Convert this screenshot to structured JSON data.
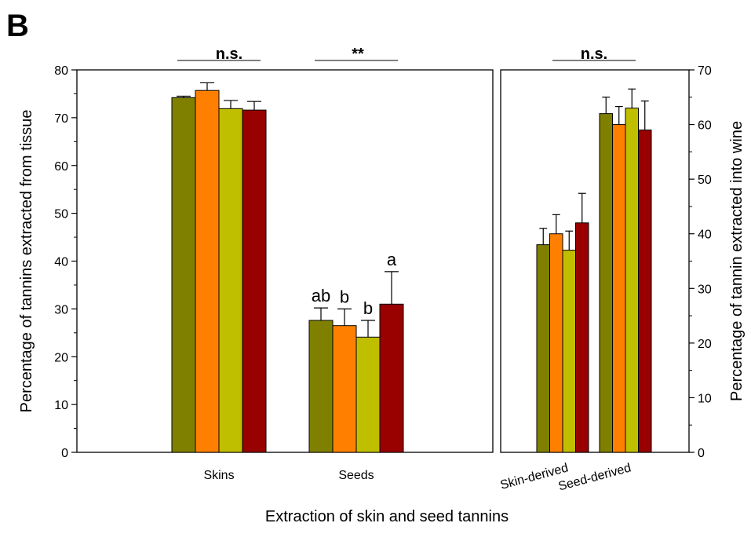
{
  "panel_label": "B",
  "x_label": "Extraction of skin and seed tannins",
  "chart_data": [
    {
      "type": "bar",
      "y_label": "Percentage of tannins extracted from tissue",
      "categories": [
        "Skins",
        "Seeds"
      ],
      "ylim": [
        0,
        80
      ],
      "yticks": [
        0,
        10,
        20,
        30,
        40,
        50,
        60,
        70,
        80
      ],
      "yminor": [
        5,
        15,
        25,
        35,
        45,
        55,
        65,
        75
      ],
      "significance": [
        "n.s.",
        "**"
      ],
      "series": [
        {
          "color": "#808000",
          "values": [
            74.2,
            27.6
          ],
          "errors": [
            0.3,
            2.6
          ],
          "letters": [
            null,
            "ab"
          ]
        },
        {
          "color": "#ff8000",
          "values": [
            75.7,
            26.5
          ],
          "errors": [
            1.6,
            3.5
          ],
          "letters": [
            null,
            "b"
          ]
        },
        {
          "color": "#bfbf00",
          "values": [
            71.9,
            24.1
          ],
          "errors": [
            1.7,
            3.5
          ],
          "letters": [
            null,
            "b"
          ]
        },
        {
          "color": "#990000",
          "values": [
            71.6,
            31.0
          ],
          "errors": [
            1.8,
            6.8
          ],
          "letters": [
            null,
            "a"
          ]
        }
      ]
    },
    {
      "type": "bar",
      "y_label": "Percentage of tannin extracted into wine",
      "categories": [
        "Skin-derived",
        "Seed-derived"
      ],
      "ylim": [
        0,
        70
      ],
      "yticks": [
        0,
        10,
        20,
        30,
        40,
        50,
        60,
        70
      ],
      "yminor": [
        5,
        15,
        25,
        35,
        45,
        55,
        65
      ],
      "significance": "n.s.",
      "series": [
        {
          "color": "#808000",
          "values": [
            38,
            62
          ],
          "errors": [
            3,
            3
          ]
        },
        {
          "color": "#ff8000",
          "values": [
            40,
            60
          ],
          "errors": [
            3.5,
            3.3
          ]
        },
        {
          "color": "#bfbf00",
          "values": [
            37,
            63
          ],
          "errors": [
            3.5,
            3.5
          ]
        },
        {
          "color": "#990000",
          "values": [
            42,
            59
          ],
          "errors": [
            5.4,
            5.3
          ]
        }
      ]
    }
  ]
}
